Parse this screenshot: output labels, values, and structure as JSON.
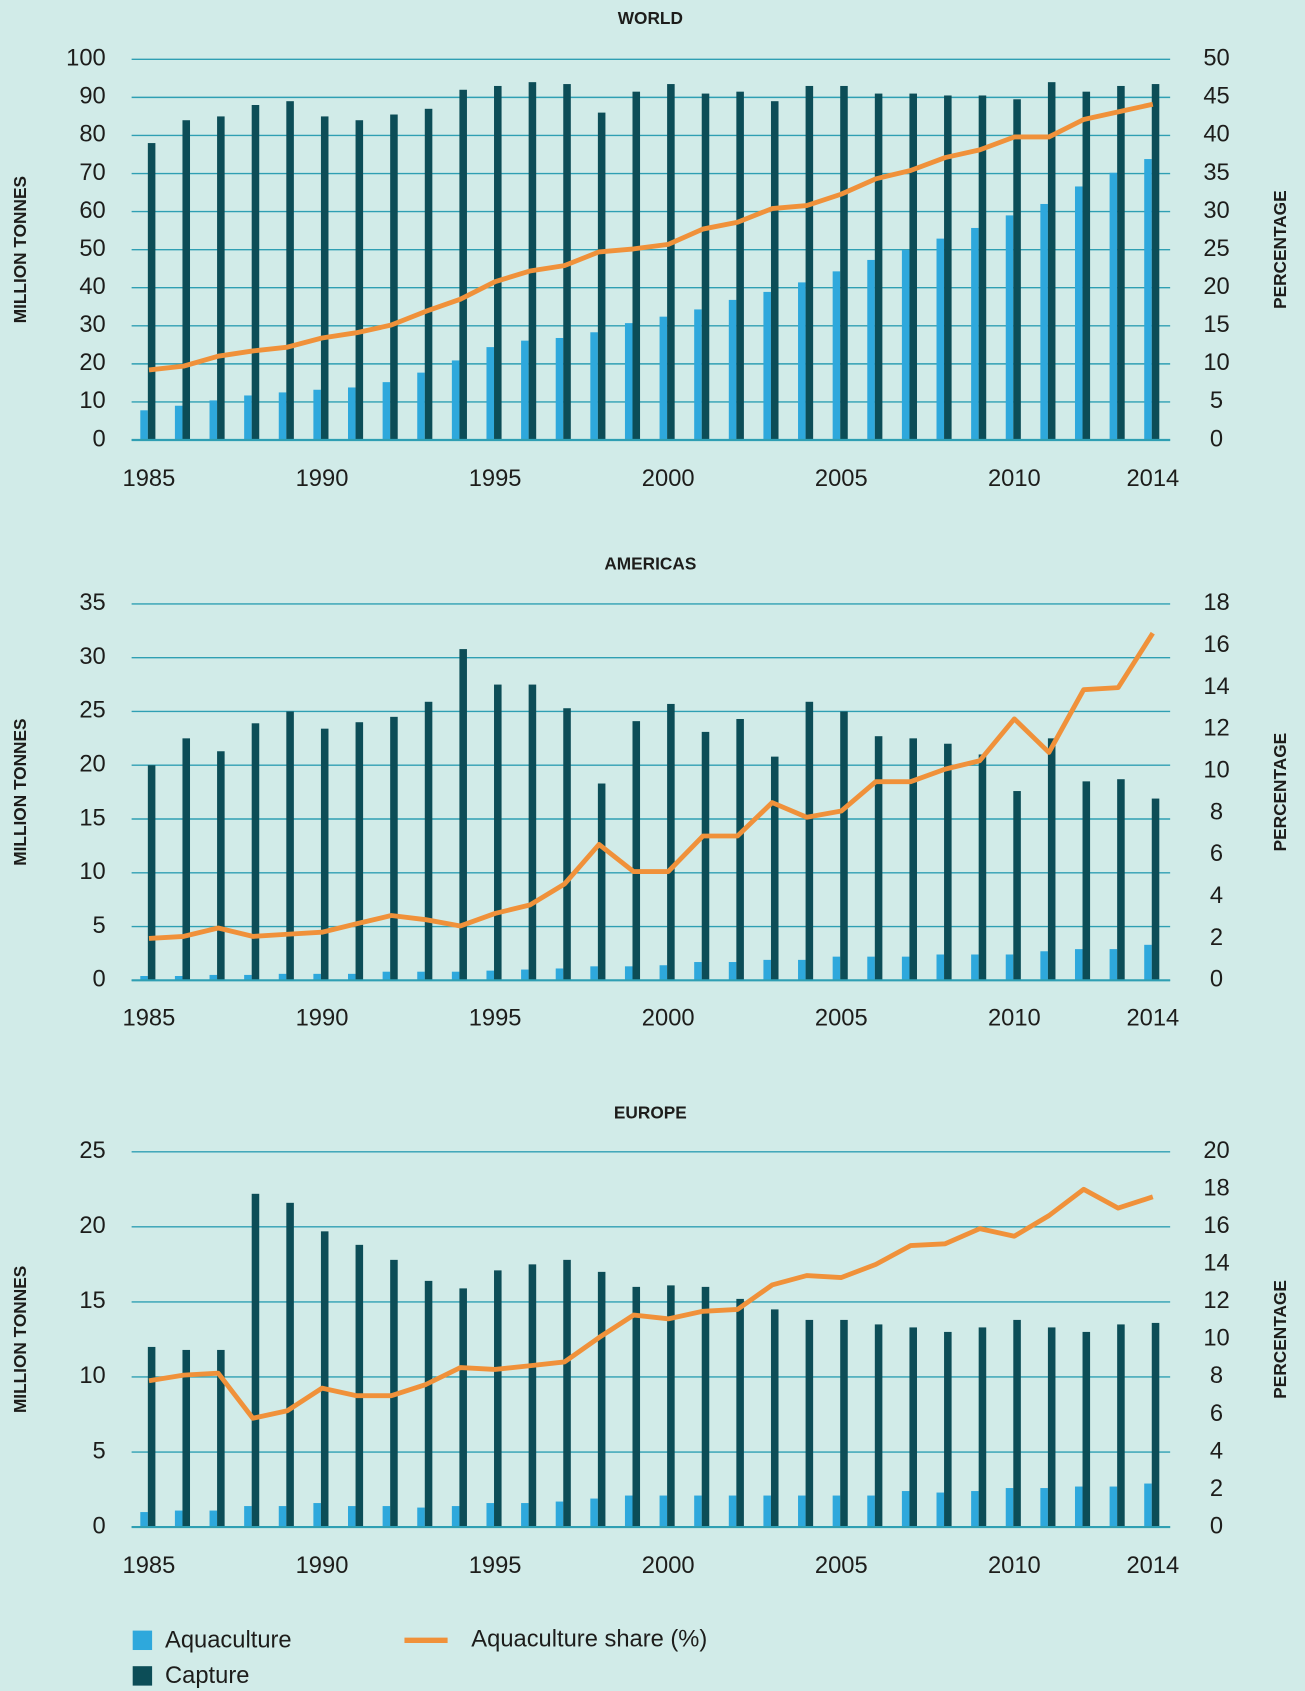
{
  "chart_data": [
    {
      "type": "bar",
      "title": "WORLD",
      "ylabel": "MILLION TONNES",
      "y2label": "PERCENTAGE",
      "x": [
        1985,
        1986,
        1987,
        1988,
        1989,
        1990,
        1991,
        1992,
        1993,
        1994,
        1995,
        1996,
        1997,
        1998,
        1999,
        2000,
        2001,
        2002,
        2003,
        2004,
        2005,
        2006,
        2007,
        2008,
        2009,
        2010,
        2011,
        2012,
        2013,
        2014
      ],
      "xlim": [
        1984.5,
        2014.5
      ],
      "xticks": [
        1985,
        1990,
        1995,
        2000,
        2005,
        2010,
        2014
      ],
      "ylim": [
        0,
        100
      ],
      "yticks": [
        0,
        10,
        20,
        30,
        40,
        50,
        60,
        70,
        80,
        90,
        100
      ],
      "y2lim": [
        0,
        50
      ],
      "y2ticks": [
        0,
        5,
        10,
        15,
        20,
        25,
        30,
        35,
        40,
        45,
        50
      ],
      "grid": true,
      "series": [
        {
          "name": "Aquaculture",
          "type": "bar",
          "color": "#2ea8dc",
          "values": [
            7.8,
            9,
            10.4,
            11.7,
            12.5,
            13.2,
            13.8,
            15.2,
            17.7,
            20.9,
            24.4,
            26.1,
            26.8,
            28.3,
            30.7,
            32.4,
            34.3,
            36.8,
            38.9,
            41.4,
            44.3,
            47.3,
            49.9,
            52.9,
            55.7,
            59,
            62,
            66.6,
            70.2,
            73.8
          ]
        },
        {
          "name": "Capture",
          "type": "bar",
          "color": "#0c4d57",
          "values": [
            78,
            84,
            85,
            88,
            89,
            85,
            84,
            85.5,
            87,
            92,
            93,
            94,
            93.5,
            86,
            91.5,
            93.5,
            91,
            91.5,
            89,
            93,
            93,
            91,
            91,
            90.5,
            90.5,
            89.5,
            94,
            91.5,
            93,
            93.5
          ]
        },
        {
          "name": "Aquaculture share (%)",
          "type": "line",
          "axis": "y2",
          "color": "#f0913a",
          "values": [
            9.2,
            9.7,
            11,
            11.7,
            12.2,
            13.4,
            14.1,
            15.1,
            16.9,
            18.5,
            20.8,
            22.2,
            22.9,
            24.7,
            25.1,
            25.7,
            27.7,
            28.6,
            30.4,
            30.8,
            32.3,
            34.3,
            35.4,
            37.1,
            38.1,
            39.8,
            39.8,
            42.1,
            43.1,
            44.1
          ]
        }
      ]
    },
    {
      "type": "bar",
      "title": "AMERICAS",
      "ylabel": "MILLION TONNES",
      "y2label": "PERCENTAGE",
      "x": [
        1985,
        1986,
        1987,
        1988,
        1989,
        1990,
        1991,
        1992,
        1993,
        1994,
        1995,
        1996,
        1997,
        1998,
        1999,
        2000,
        2001,
        2002,
        2003,
        2004,
        2005,
        2006,
        2007,
        2008,
        2009,
        2010,
        2011,
        2012,
        2013,
        2014
      ],
      "xlim": [
        1984.5,
        2014.5
      ],
      "xticks": [
        1985,
        1990,
        1995,
        2000,
        2005,
        2010,
        2014
      ],
      "ylim": [
        0,
        35
      ],
      "yticks": [
        0,
        5,
        10,
        15,
        20,
        25,
        30,
        35
      ],
      "y2lim": [
        0,
        18
      ],
      "y2ticks": [
        0,
        2,
        4,
        6,
        8,
        10,
        12,
        14,
        16,
        18
      ],
      "grid": true,
      "series": [
        {
          "type": "bar",
          "color": "#2ea8dc",
          "values": [
            0.4,
            0.4,
            0.5,
            0.5,
            0.6,
            0.6,
            0.6,
            0.8,
            0.8,
            0.8,
            0.9,
            1,
            1.1,
            1.3,
            1.3,
            1.4,
            1.7,
            1.7,
            1.9,
            1.9,
            2.2,
            2.2,
            2.2,
            2.4,
            2.4,
            2.4,
            2.7,
            2.9,
            2.9,
            3.3
          ]
        },
        {
          "type": "bar",
          "color": "#0c4d57",
          "values": [
            20,
            22.5,
            21.3,
            23.9,
            25,
            23.4,
            24,
            24.5,
            25.9,
            30.8,
            27.5,
            27.5,
            25.3,
            18.3,
            24.1,
            25.7,
            23.1,
            24.3,
            20.8,
            25.9,
            25,
            22.7,
            22.5,
            22,
            21,
            17.6,
            22.5,
            18.5,
            18.7,
            16.9
          ]
        },
        {
          "type": "line",
          "axis": "y2",
          "color": "#f0913a",
          "values": [
            2,
            2.1,
            2.5,
            2.1,
            2.2,
            2.3,
            2.7,
            3.1,
            2.9,
            2.6,
            3.2,
            3.6,
            4.6,
            6.5,
            5.2,
            5.2,
            6.9,
            6.9,
            8.5,
            7.8,
            8.1,
            9.5,
            9.5,
            10.1,
            10.5,
            12.5,
            10.9,
            13.9,
            14,
            16.6
          ]
        }
      ]
    },
    {
      "type": "bar",
      "title": "EUROPE",
      "ylabel": "MILLION TONNES",
      "y2label": "PERCENTAGE",
      "x": [
        1985,
        1986,
        1987,
        1988,
        1989,
        1990,
        1991,
        1992,
        1993,
        1994,
        1995,
        1996,
        1997,
        1998,
        1999,
        2000,
        2001,
        2002,
        2003,
        2004,
        2005,
        2006,
        2007,
        2008,
        2009,
        2010,
        2011,
        2012,
        2013,
        2014
      ],
      "xlim": [
        1984.5,
        2014.5
      ],
      "xticks": [
        1985,
        1990,
        1995,
        2000,
        2005,
        2010,
        2014
      ],
      "ylim": [
        0,
        25
      ],
      "yticks": [
        0,
        5,
        10,
        15,
        20,
        25
      ],
      "y2lim": [
        0,
        20
      ],
      "y2ticks": [
        0,
        2,
        4,
        6,
        8,
        10,
        12,
        14,
        16,
        18,
        20
      ],
      "grid": true,
      "series": [
        {
          "type": "bar",
          "color": "#2ea8dc",
          "values": [
            1,
            1.1,
            1.1,
            1.4,
            1.4,
            1.6,
            1.4,
            1.4,
            1.3,
            1.4,
            1.6,
            1.6,
            1.7,
            1.9,
            2.1,
            2.1,
            2.1,
            2.1,
            2.1,
            2.1,
            2.1,
            2.1,
            2.4,
            2.3,
            2.4,
            2.6,
            2.6,
            2.7,
            2.7,
            2.9
          ]
        },
        {
          "type": "bar",
          "color": "#0c4d57",
          "values": [
            12,
            11.8,
            11.8,
            22.2,
            21.6,
            19.7,
            18.8,
            17.8,
            16.4,
            15.9,
            17.1,
            17.5,
            17.8,
            17,
            16,
            16.1,
            16,
            15.2,
            14.5,
            13.8,
            13.8,
            13.5,
            13.3,
            13,
            13.3,
            13.8,
            13.3,
            13,
            13.5,
            13.6
          ]
        },
        {
          "type": "line",
          "axis": "y2",
          "color": "#f0913a",
          "values": [
            7.8,
            8.1,
            8.2,
            5.8,
            6.2,
            7.4,
            7,
            7,
            7.6,
            8.5,
            8.4,
            8.6,
            8.8,
            10.1,
            11.3,
            11.1,
            11.5,
            11.6,
            12.9,
            13.4,
            13.3,
            14,
            15,
            15.1,
            15.9,
            15.5,
            16.6,
            18,
            17,
            17.6
          ]
        }
      ]
    }
  ]
}
